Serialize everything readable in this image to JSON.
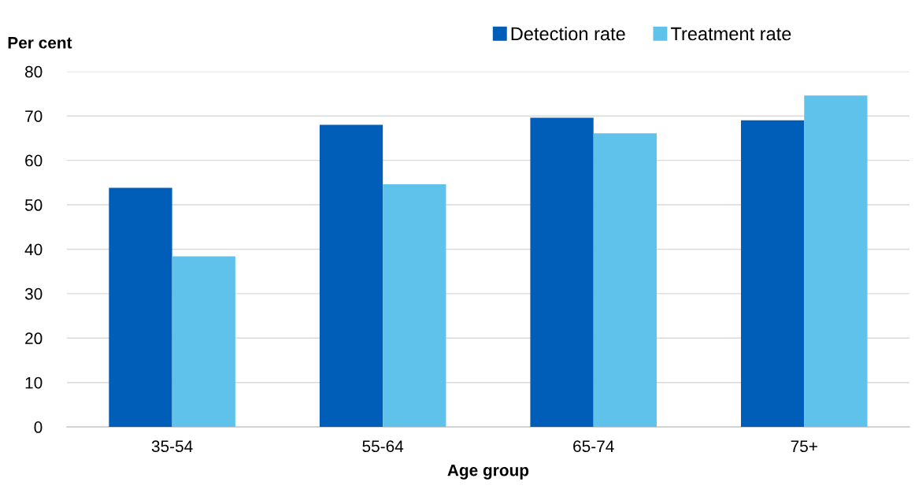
{
  "chart_data": {
    "type": "bar",
    "xlabel": "Age group",
    "ylabel": "Per cent",
    "categories": [
      "35-54",
      "55-64",
      "65-74",
      "75+"
    ],
    "series": [
      {
        "name": "Detection rate",
        "color": "#005eb8",
        "values": [
          53.8,
          68.0,
          69.6,
          69.0
        ]
      },
      {
        "name": "Treatment rate",
        "color": "#5fc2ea",
        "values": [
          38.4,
          54.6,
          66.1,
          74.6
        ]
      }
    ],
    "ylim": [
      0,
      80
    ],
    "yticks": [
      0,
      10,
      20,
      30,
      40,
      50,
      60,
      70,
      80
    ],
    "grid": "y",
    "legend": "top right"
  }
}
